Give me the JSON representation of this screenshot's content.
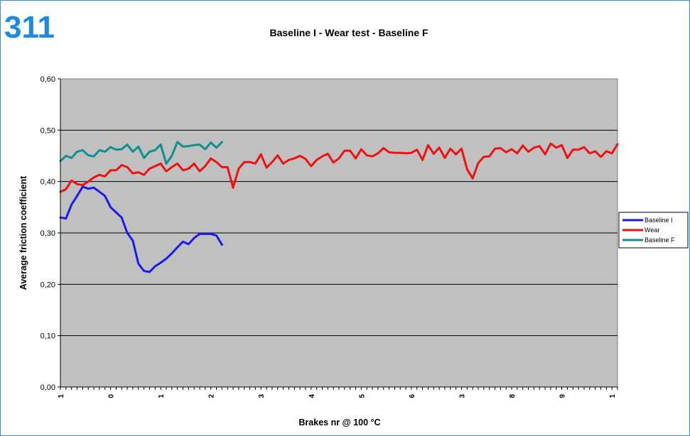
{
  "badge": "311",
  "chart_data": {
    "type": "line",
    "title": "Baseline I - Wear test - Baseline F",
    "xlabel": "Brakes nr @ 100 °C",
    "ylabel": "Average friction coefficient",
    "ylim": [
      0,
      0.6
    ],
    "yticks": [
      {
        "value": 0.0,
        "label": "0,00"
      },
      {
        "value": 0.1,
        "label": "0,10"
      },
      {
        "value": 0.2,
        "label": "0,20"
      },
      {
        "value": 0.3,
        "label": "0,30"
      },
      {
        "value": 0.4,
        "label": "0,40"
      },
      {
        "value": 0.5,
        "label": "0,50"
      },
      {
        "value": 0.6,
        "label": "0,60"
      }
    ],
    "xtick_labels": [
      {
        "index": 0,
        "label": "1"
      },
      {
        "index": 9,
        "label": "0"
      },
      {
        "index": 18,
        "label": "1"
      },
      {
        "index": 27,
        "label": "2"
      },
      {
        "index": 36,
        "label": "3"
      },
      {
        "index": 45,
        "label": "4"
      },
      {
        "index": 54,
        "label": "5"
      },
      {
        "index": 63,
        "label": "6"
      },
      {
        "index": 72,
        "label": "3"
      },
      {
        "index": 81,
        "label": "8"
      },
      {
        "index": 90,
        "label": "9"
      },
      {
        "index": 99,
        "label": "1"
      }
    ],
    "grid": true,
    "legend_position": "right",
    "series": [
      {
        "name": "Baseline I",
        "color": "#1a1aee",
        "values": [
          0.33,
          0.328,
          0.355,
          0.372,
          0.39,
          0.386,
          0.388,
          0.38,
          0.372,
          0.35,
          0.34,
          0.33,
          0.3,
          0.285,
          0.24,
          0.226,
          0.224,
          0.235,
          0.242,
          0.25,
          0.26,
          0.272,
          0.283,
          0.278,
          0.29,
          0.298,
          0.298,
          0.298,
          0.295,
          0.277
        ]
      },
      {
        "name": "Wear",
        "color": "#ee1111",
        "values": [
          0.38,
          0.385,
          0.402,
          0.395,
          0.393,
          0.4,
          0.408,
          0.413,
          0.41,
          0.422,
          0.422,
          0.432,
          0.428,
          0.416,
          0.418,
          0.413,
          0.425,
          0.43,
          0.435,
          0.42,
          0.428,
          0.435,
          0.422,
          0.425,
          0.435,
          0.42,
          0.43,
          0.445,
          0.438,
          0.428,
          0.428,
          0.388,
          0.425,
          0.438,
          0.438,
          0.435,
          0.453,
          0.427,
          0.438,
          0.451,
          0.435,
          0.442,
          0.445,
          0.45,
          0.444,
          0.43,
          0.442,
          0.449,
          0.454,
          0.437,
          0.445,
          0.46,
          0.46,
          0.445,
          0.463,
          0.451,
          0.449,
          0.455,
          0.465,
          0.457,
          0.456,
          0.456,
          0.455,
          0.456,
          0.462,
          0.442,
          0.471,
          0.454,
          0.466,
          0.446,
          0.464,
          0.453,
          0.464,
          0.424,
          0.406,
          0.436,
          0.448,
          0.449,
          0.464,
          0.465,
          0.457,
          0.463,
          0.455,
          0.47,
          0.458,
          0.466,
          0.469,
          0.453,
          0.474,
          0.466,
          0.471,
          0.446,
          0.462,
          0.462,
          0.467,
          0.455,
          0.459,
          0.448,
          0.459,
          0.455,
          0.473
        ]
      },
      {
        "name": "Baseline F",
        "color": "#0f8f8f",
        "values": [
          0.44,
          0.45,
          0.446,
          0.458,
          0.461,
          0.451,
          0.449,
          0.461,
          0.458,
          0.467,
          0.462,
          0.463,
          0.472,
          0.458,
          0.468,
          0.446,
          0.458,
          0.461,
          0.472,
          0.435,
          0.45,
          0.477,
          0.468,
          0.469,
          0.471,
          0.472,
          0.463,
          0.476,
          0.466,
          0.477
        ]
      }
    ]
  }
}
